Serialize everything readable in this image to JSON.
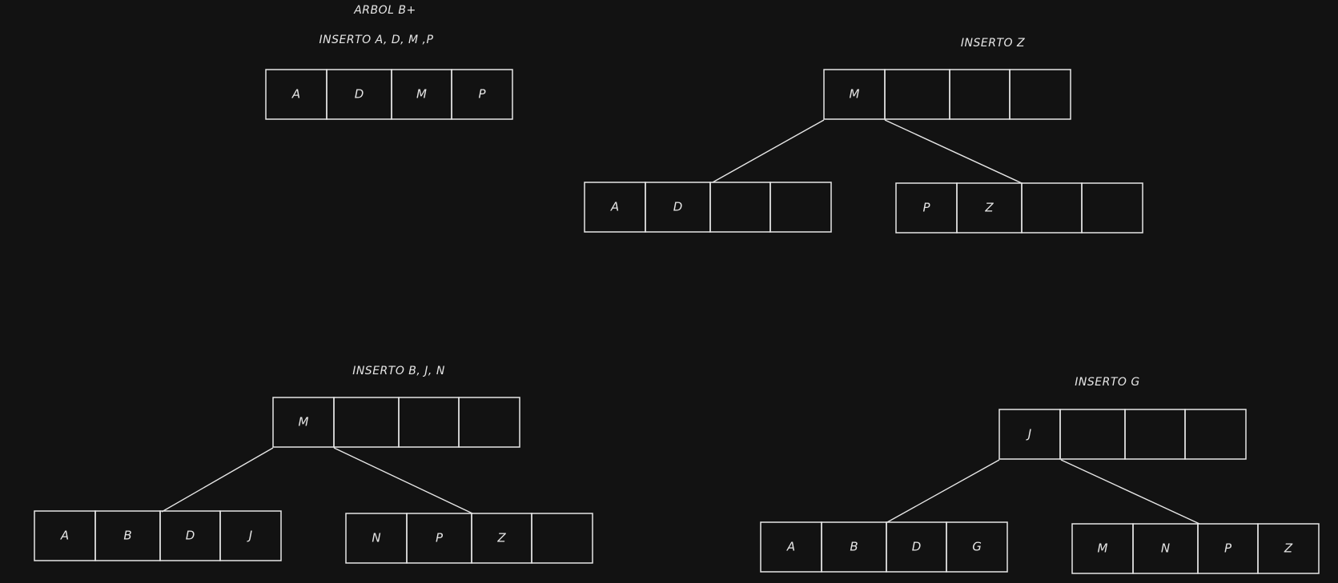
{
  "title": "ARBOL B+",
  "steps": [
    {
      "label": "INSERTO A, D, M ,P",
      "root": [
        "A",
        "D",
        "M",
        "P"
      ]
    },
    {
      "label": "INSERTO Z",
      "root": [
        "M",
        "",
        "",
        ""
      ],
      "left": [
        "A",
        "D",
        "",
        ""
      ],
      "right": [
        "P",
        "Z",
        "",
        ""
      ]
    },
    {
      "label": "INSERTO B, J, N",
      "root": [
        "M",
        "",
        "",
        ""
      ],
      "left": [
        "A",
        "B",
        "D",
        "J"
      ],
      "right": [
        "N",
        "P",
        "Z",
        ""
      ]
    },
    {
      "label": "INSERTO G",
      "root": [
        "J",
        "",
        "",
        ""
      ],
      "left": [
        "A",
        "B",
        "D",
        "G"
      ],
      "right": [
        "M",
        "N",
        "P",
        "Z"
      ]
    }
  ],
  "colors": {
    "background": "#121212",
    "stroke": "#e6e6e6"
  }
}
